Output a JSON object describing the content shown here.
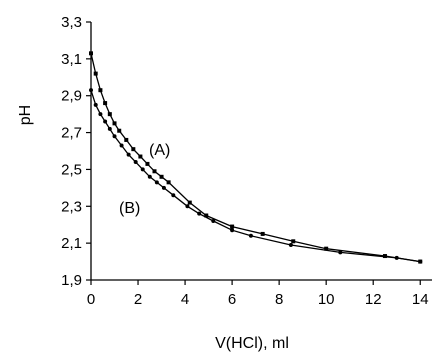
{
  "chart_data": {
    "type": "line",
    "xlabel": "V(HCl), ml",
    "ylabel": "pH",
    "xlim": [
      0,
      14.5
    ],
    "ylim": [
      1.9,
      3.3
    ],
    "xticks": [
      0,
      2,
      4,
      6,
      8,
      10,
      12,
      14
    ],
    "xtick_labels": [
      "0",
      "2",
      "4",
      "6",
      "8",
      "10",
      "12",
      "14"
    ],
    "yticks": [
      1.9,
      2.1,
      2.3,
      2.5,
      2.7,
      2.9,
      3.1,
      3.3
    ],
    "ytick_labels": [
      "1,9",
      "2,1",
      "2,3",
      "2,5",
      "2,7",
      "2,9",
      "3,1",
      "3,3"
    ],
    "grid": false,
    "series": [
      {
        "name": "(A)",
        "marker": "square",
        "x": [
          0,
          0.2,
          0.4,
          0.6,
          0.8,
          1.0,
          1.2,
          1.5,
          1.8,
          2.1,
          2.4,
          2.7,
          3.0,
          3.3,
          4.2,
          4.9,
          6.0,
          7.3,
          8.6,
          10.0,
          12.5,
          14.0
        ],
        "y": [
          3.13,
          3.02,
          2.93,
          2.86,
          2.8,
          2.75,
          2.71,
          2.66,
          2.61,
          2.57,
          2.53,
          2.49,
          2.46,
          2.43,
          2.32,
          2.25,
          2.19,
          2.15,
          2.11,
          2.07,
          2.03,
          2.0
        ]
      },
      {
        "name": "(B)",
        "marker": "circle",
        "x": [
          0,
          0.2,
          0.4,
          0.6,
          0.8,
          1.0,
          1.3,
          1.6,
          1.9,
          2.2,
          2.5,
          2.8,
          3.1,
          3.5,
          4.1,
          4.6,
          5.2,
          6.0,
          6.8,
          8.5,
          10.6,
          13.0,
          14.0
        ],
        "y": [
          2.93,
          2.85,
          2.8,
          2.76,
          2.72,
          2.68,
          2.63,
          2.58,
          2.54,
          2.5,
          2.46,
          2.43,
          2.4,
          2.36,
          2.3,
          2.26,
          2.22,
          2.17,
          2.14,
          2.09,
          2.05,
          2.02,
          2.0
        ]
      }
    ]
  }
}
